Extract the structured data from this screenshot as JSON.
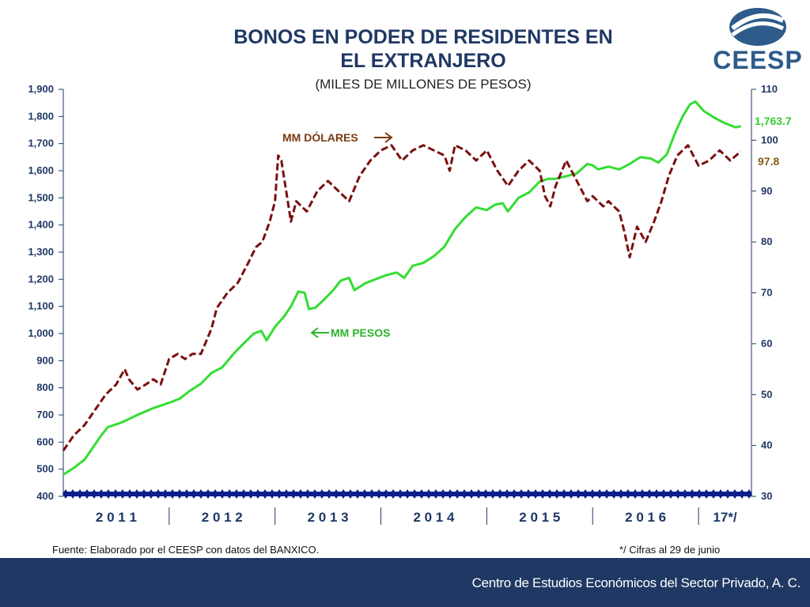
{
  "header": {
    "title_line1": "BONOS EN PODER DE RESIDENTES EN",
    "title_line2": "EL EXTRANJERO",
    "subtitle": "(MILES DE MILLONES DE PESOS)",
    "logo_text": "CEESP"
  },
  "footer": {
    "source": "Fuente: Elaborado por el CEESP con datos del BANXICO.",
    "note": "*/ Cifras al 29 de junio",
    "org": "Centro de Estudios Económicos del Sector Privado, A. C."
  },
  "colors": {
    "pesos": "#33dd33",
    "dolares": "#7a1010",
    "axis": "#1f3864",
    "end_label_pesos": "#33cc33",
    "end_label_dolares": "#8a5a1a"
  },
  "chart_data": {
    "type": "line",
    "x_unit": "year",
    "x_range": [
      2011.0,
      2017.5
    ],
    "year_labels": [
      "2 0 1 1",
      "2 0 1 2",
      "2 0 1 3",
      "2 0 1 4",
      "2 0 1 5",
      "2 0 1 6",
      "17*/"
    ],
    "left_axis": {
      "ylim": [
        400,
        1900
      ],
      "ticks": [
        "400",
        "500",
        "600",
        "700",
        "800",
        "900",
        "1,000",
        "1,100",
        "1,200",
        "1,300",
        "1,400",
        "1,500",
        "1,600",
        "1,700",
        "1,800",
        "1,900"
      ]
    },
    "right_axis": {
      "ylim": [
        30,
        110
      ],
      "ticks": [
        "30",
        "40",
        "50",
        "60",
        "70",
        "80",
        "90",
        "100",
        "110"
      ]
    },
    "annotations": {
      "dolares": "MM DÓLARES",
      "pesos": "MM PESOS"
    },
    "end_labels": {
      "pesos": "1,763.7",
      "dolares": "97.8"
    },
    "series": [
      {
        "name": "MM PESOS",
        "axis": "left",
        "points": [
          [
            2011.0,
            480
          ],
          [
            2011.1,
            505
          ],
          [
            2011.2,
            535
          ],
          [
            2011.28,
            580
          ],
          [
            2011.35,
            620
          ],
          [
            2011.42,
            655
          ],
          [
            2011.55,
            672
          ],
          [
            2011.7,
            700
          ],
          [
            2011.85,
            725
          ],
          [
            2012.0,
            745
          ],
          [
            2012.1,
            760
          ],
          [
            2012.2,
            790
          ],
          [
            2012.3,
            815
          ],
          [
            2012.4,
            855
          ],
          [
            2012.5,
            875
          ],
          [
            2012.62,
            930
          ],
          [
            2012.72,
            970
          ],
          [
            2012.8,
            1000
          ],
          [
            2012.87,
            1010
          ],
          [
            2012.92,
            975
          ],
          [
            2013.0,
            1025
          ],
          [
            2013.08,
            1060
          ],
          [
            2013.15,
            1100
          ],
          [
            2013.22,
            1155
          ],
          [
            2013.28,
            1150
          ],
          [
            2013.32,
            1090
          ],
          [
            2013.38,
            1095
          ],
          [
            2013.45,
            1120
          ],
          [
            2013.55,
            1160
          ],
          [
            2013.62,
            1195
          ],
          [
            2013.7,
            1205
          ],
          [
            2013.75,
            1160
          ],
          [
            2013.85,
            1185
          ],
          [
            2013.95,
            1200
          ],
          [
            2014.05,
            1215
          ],
          [
            2014.15,
            1225
          ],
          [
            2014.22,
            1205
          ],
          [
            2014.3,
            1250
          ],
          [
            2014.4,
            1260
          ],
          [
            2014.5,
            1285
          ],
          [
            2014.6,
            1320
          ],
          [
            2014.7,
            1385
          ],
          [
            2014.8,
            1430
          ],
          [
            2014.9,
            1465
          ],
          [
            2015.0,
            1455
          ],
          [
            2015.08,
            1475
          ],
          [
            2015.15,
            1480
          ],
          [
            2015.2,
            1450
          ],
          [
            2015.3,
            1500
          ],
          [
            2015.4,
            1520
          ],
          [
            2015.5,
            1560
          ],
          [
            2015.58,
            1570
          ],
          [
            2015.65,
            1570
          ],
          [
            2015.75,
            1580
          ],
          [
            2015.85,
            1590
          ],
          [
            2015.95,
            1625
          ],
          [
            2016.0,
            1620
          ],
          [
            2016.05,
            1605
          ],
          [
            2016.15,
            1615
          ],
          [
            2016.25,
            1605
          ],
          [
            2016.35,
            1625
          ],
          [
            2016.45,
            1650
          ],
          [
            2016.55,
            1645
          ],
          [
            2016.62,
            1630
          ],
          [
            2016.7,
            1660
          ],
          [
            2016.78,
            1740
          ],
          [
            2016.85,
            1800
          ],
          [
            2016.92,
            1845
          ],
          [
            2016.97,
            1855
          ],
          [
            2017.05,
            1820
          ],
          [
            2017.15,
            1795
          ],
          [
            2017.25,
            1775
          ],
          [
            2017.35,
            1760
          ],
          [
            2017.4,
            1764
          ]
        ]
      },
      {
        "name": "MM DÓLARES",
        "axis": "right",
        "points": [
          [
            2011.0,
            39
          ],
          [
            2011.1,
            42
          ],
          [
            2011.2,
            44
          ],
          [
            2011.3,
            47
          ],
          [
            2011.4,
            50
          ],
          [
            2011.5,
            52
          ],
          [
            2011.58,
            55
          ],
          [
            2011.62,
            53
          ],
          [
            2011.7,
            51
          ],
          [
            2011.78,
            52
          ],
          [
            2011.85,
            53
          ],
          [
            2011.92,
            52
          ],
          [
            2012.0,
            57
          ],
          [
            2012.08,
            58
          ],
          [
            2012.15,
            57
          ],
          [
            2012.22,
            58
          ],
          [
            2012.3,
            58
          ],
          [
            2012.4,
            63
          ],
          [
            2012.45,
            67
          ],
          [
            2012.55,
            70
          ],
          [
            2012.65,
            72
          ],
          [
            2012.75,
            76
          ],
          [
            2012.82,
            79
          ],
          [
            2012.88,
            80
          ],
          [
            2012.95,
            84
          ],
          [
            2013.0,
            88
          ],
          [
            2013.03,
            97
          ],
          [
            2013.06,
            96
          ],
          [
            2013.12,
            88
          ],
          [
            2013.15,
            84
          ],
          [
            2013.2,
            88
          ],
          [
            2013.3,
            86
          ],
          [
            2013.4,
            90
          ],
          [
            2013.5,
            92
          ],
          [
            2013.6,
            90
          ],
          [
            2013.7,
            88
          ],
          [
            2013.8,
            93
          ],
          [
            2013.9,
            96
          ],
          [
            2014.0,
            98
          ],
          [
            2014.1,
            99
          ],
          [
            2014.2,
            96
          ],
          [
            2014.3,
            98
          ],
          [
            2014.4,
            99
          ],
          [
            2014.5,
            98
          ],
          [
            2014.6,
            97
          ],
          [
            2014.65,
            94
          ],
          [
            2014.7,
            99
          ],
          [
            2014.8,
            98
          ],
          [
            2014.9,
            96
          ],
          [
            2015.0,
            98
          ],
          [
            2015.1,
            94
          ],
          [
            2015.2,
            91
          ],
          [
            2015.3,
            94
          ],
          [
            2015.4,
            96
          ],
          [
            2015.5,
            94
          ],
          [
            2015.55,
            89
          ],
          [
            2015.6,
            87
          ],
          [
            2015.65,
            91
          ],
          [
            2015.75,
            96
          ],
          [
            2015.85,
            92
          ],
          [
            2015.95,
            88
          ],
          [
            2016.0,
            89
          ],
          [
            2016.1,
            87
          ],
          [
            2016.15,
            88
          ],
          [
            2016.25,
            86
          ],
          [
            2016.3,
            82
          ],
          [
            2016.35,
            77
          ],
          [
            2016.42,
            83
          ],
          [
            2016.5,
            80
          ],
          [
            2016.58,
            84
          ],
          [
            2016.65,
            88
          ],
          [
            2016.72,
            93
          ],
          [
            2016.8,
            97
          ],
          [
            2016.9,
            99
          ],
          [
            2017.0,
            95
          ],
          [
            2017.1,
            96
          ],
          [
            2017.2,
            98
          ],
          [
            2017.3,
            96
          ],
          [
            2017.4,
            97.8
          ]
        ]
      }
    ]
  }
}
